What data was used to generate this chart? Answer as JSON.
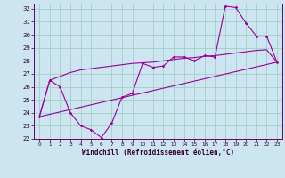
{
  "xlabel": "Windchill (Refroidissement éolien,°C)",
  "bg_color": "#cce5f0",
  "line_color": "#990099",
  "grid_color": "#99ccbb",
  "xlim": [
    -0.5,
    23.5
  ],
  "ylim": [
    22,
    32.4
  ],
  "yticks": [
    22,
    23,
    24,
    25,
    26,
    27,
    28,
    29,
    30,
    31,
    32
  ],
  "xticks": [
    0,
    1,
    2,
    3,
    4,
    5,
    6,
    7,
    8,
    9,
    10,
    11,
    12,
    13,
    14,
    15,
    16,
    17,
    18,
    19,
    20,
    21,
    22,
    23
  ],
  "series1_x": [
    0,
    1,
    2,
    3,
    4,
    5,
    6,
    7,
    8,
    9,
    10,
    11,
    12,
    13,
    14,
    15,
    16,
    17,
    18,
    19,
    20,
    21,
    22,
    23
  ],
  "series1_y": [
    23.7,
    26.5,
    26.0,
    24.0,
    23.0,
    22.7,
    22.1,
    23.2,
    25.2,
    25.5,
    27.8,
    27.5,
    27.6,
    28.3,
    28.3,
    28.0,
    28.4,
    28.3,
    32.2,
    32.1,
    30.9,
    29.9,
    29.9,
    27.9
  ],
  "series2_x": [
    0,
    1,
    2,
    3,
    4,
    5,
    6,
    7,
    8,
    9,
    10,
    11,
    12,
    13,
    14,
    15,
    16,
    17,
    18,
    19,
    20,
    21,
    22,
    23
  ],
  "series2_y": [
    23.7,
    26.5,
    26.8,
    27.1,
    27.3,
    27.4,
    27.5,
    27.6,
    27.7,
    27.8,
    27.85,
    27.9,
    28.0,
    28.1,
    28.2,
    28.25,
    28.35,
    28.4,
    28.5,
    28.6,
    28.7,
    28.8,
    28.85,
    27.9
  ],
  "series3_x": [
    0,
    23
  ],
  "series3_y": [
    23.7,
    27.9
  ]
}
